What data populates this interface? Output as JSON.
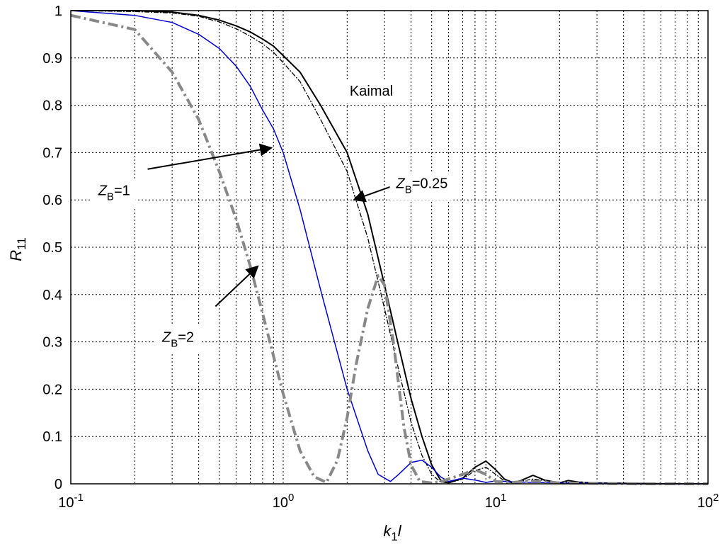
{
  "chart_data": {
    "type": "line",
    "xscale": "log",
    "xlim": [
      0.1,
      100
    ],
    "ylim": [
      0,
      1
    ],
    "grid": true,
    "xlabel": {
      "main": "k",
      "sub": "1",
      "tail": "l"
    },
    "ylabel": {
      "main": "R",
      "sub": "11"
    },
    "x_ticks": [
      {
        "base": "10",
        "exp": "-1",
        "value": 0.1
      },
      {
        "base": "10",
        "exp": "0",
        "value": 1
      },
      {
        "base": "10",
        "exp": "1",
        "value": 10
      },
      {
        "base": "10",
        "exp": "2",
        "value": 100
      }
    ],
    "y_ticks": [
      "0",
      "0.1",
      "0.2",
      "0.3",
      "0.4",
      "0.5",
      "0.6",
      "0.7",
      "0.8",
      "0.9",
      "1"
    ],
    "series": [
      {
        "color": "#000000",
        "style": "solid",
        "width": 2,
        "x": [
          0.1,
          0.2,
          0.3,
          0.4,
          0.5,
          0.6,
          0.7,
          0.8,
          0.9,
          1.0,
          1.2,
          1.5,
          2.0,
          2.5,
          3.0,
          3.5,
          4.0,
          4.5,
          5.0,
          5.5,
          6.0,
          7.0,
          8.0,
          9.0,
          10,
          11,
          12,
          13,
          15,
          17,
          20,
          22,
          25,
          30,
          40,
          50,
          100
        ],
        "y": [
          1.0,
          1.0,
          0.997,
          0.99,
          0.98,
          0.968,
          0.955,
          0.94,
          0.925,
          0.905,
          0.87,
          0.8,
          0.7,
          0.57,
          0.42,
          0.29,
          0.18,
          0.1,
          0.04,
          0.008,
          0.002,
          0.012,
          0.035,
          0.048,
          0.03,
          0.01,
          0.003,
          0.006,
          0.018,
          0.008,
          0.002,
          0.007,
          0.003,
          0.002,
          0.001,
          0.0,
          0.0
        ]
      },
      {
        "color": "#000000",
        "style": "dashdot-thin",
        "width": 1.3,
        "x": [
          0.1,
          0.2,
          0.3,
          0.4,
          0.5,
          0.6,
          0.7,
          0.8,
          0.9,
          1.0,
          1.2,
          1.5,
          2.0,
          2.5,
          3.0,
          3.5,
          4.0,
          4.5,
          5.0,
          5.5,
          6.0,
          7.0,
          8.0,
          9.0,
          10,
          11,
          12,
          15,
          20,
          25,
          30,
          50,
          100
        ],
        "y": [
          1.0,
          0.998,
          0.995,
          0.988,
          0.976,
          0.962,
          0.946,
          0.93,
          0.912,
          0.89,
          0.85,
          0.77,
          0.66,
          0.52,
          0.37,
          0.24,
          0.13,
          0.06,
          0.02,
          0.004,
          0.002,
          0.01,
          0.028,
          0.035,
          0.02,
          0.006,
          0.002,
          0.01,
          0.003,
          0.004,
          0.002,
          0.001,
          0.0
        ]
      },
      {
        "color": "#0000cc",
        "style": "solid",
        "width": 1.5,
        "x": [
          0.1,
          0.2,
          0.3,
          0.4,
          0.5,
          0.6,
          0.7,
          0.8,
          0.9,
          1.0,
          1.2,
          1.5,
          2.0,
          2.5,
          2.8,
          3.2,
          3.5,
          4.0,
          4.5,
          5.0,
          5.5,
          6.0,
          7.0,
          8.0,
          9.0,
          10,
          12,
          15,
          20,
          30,
          50,
          100
        ],
        "y": [
          1.0,
          0.99,
          0.975,
          0.95,
          0.92,
          0.883,
          0.84,
          0.79,
          0.75,
          0.7,
          0.58,
          0.41,
          0.2,
          0.07,
          0.02,
          0.005,
          0.02,
          0.045,
          0.05,
          0.035,
          0.015,
          0.005,
          0.012,
          0.008,
          0.003,
          0.006,
          0.004,
          0.003,
          0.002,
          0.001,
          0.0,
          0.0
        ]
      },
      {
        "color": "#888888",
        "style": "dashdot-thick",
        "width": 4,
        "x": [
          0.1,
          0.2,
          0.3,
          0.4,
          0.5,
          0.6,
          0.7,
          0.8,
          0.9,
          1.0,
          1.2,
          1.4,
          1.6,
          1.8,
          2.0,
          2.2,
          2.5,
          2.8,
          3.0,
          3.3,
          3.7,
          4.0,
          4.4,
          5.0,
          5.5,
          6.0,
          7.0,
          8.0,
          9.0,
          10,
          12,
          15,
          20,
          30,
          50,
          100
        ],
        "y": [
          0.99,
          0.96,
          0.87,
          0.77,
          0.66,
          0.56,
          0.46,
          0.36,
          0.27,
          0.19,
          0.07,
          0.015,
          0.003,
          0.05,
          0.14,
          0.25,
          0.37,
          0.44,
          0.42,
          0.3,
          0.12,
          0.04,
          0.005,
          0.002,
          0.004,
          0.01,
          0.02,
          0.03,
          0.02,
          0.005,
          0.003,
          0.006,
          0.002,
          0.001,
          0.0,
          0.0
        ]
      }
    ],
    "annotations": [
      {
        "text": "Kaimal",
        "at": [
          2.6,
          0.82
        ]
      },
      {
        "main": "Z",
        "sub": "B",
        "tail": "=1",
        "at": [
          0.16,
          0.61
        ],
        "arrow_from": [
          0.23,
          0.665
        ],
        "arrow_to": [
          0.88,
          0.71
        ]
      },
      {
        "main": "Z",
        "sub": "B",
        "tail": "=0.25",
        "at": [
          4.5,
          0.625
        ],
        "arrow_from": [
          4.1,
          0.645
        ],
        "arrow_to": [
          2.15,
          0.6
        ]
      },
      {
        "main": "Z",
        "sub": "B",
        "tail": "=2",
        "at": [
          0.32,
          0.3
        ],
        "arrow_from": [
          0.48,
          0.375
        ],
        "arrow_to": [
          0.76,
          0.46
        ]
      }
    ]
  }
}
